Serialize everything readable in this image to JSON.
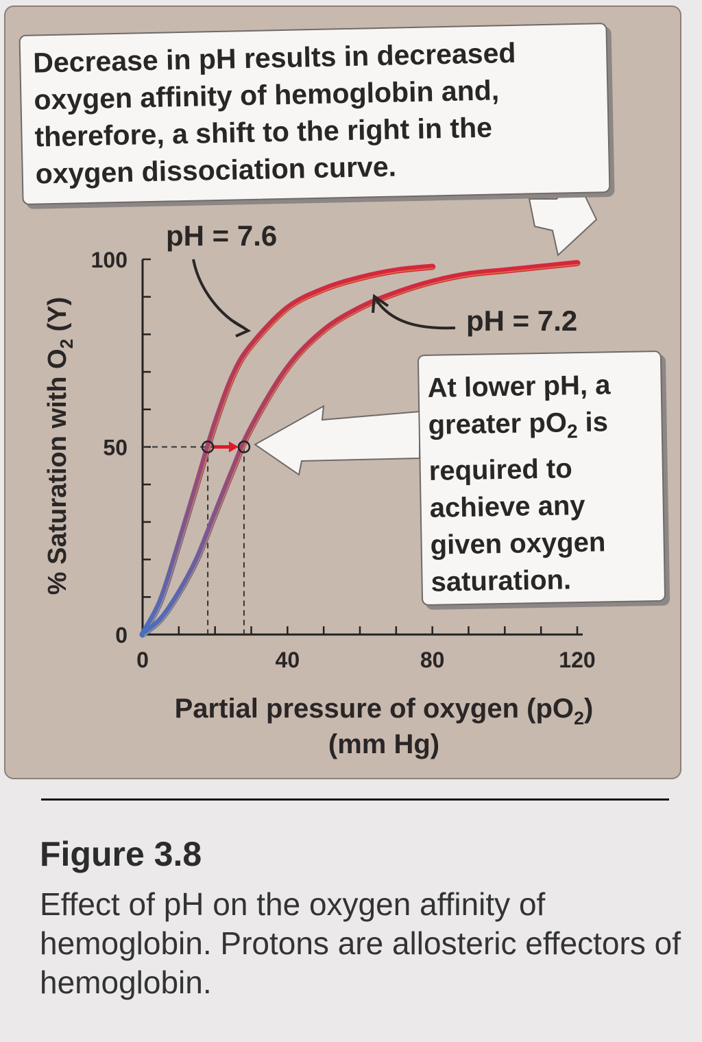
{
  "chart_data": {
    "type": "line",
    "xlabel": "Partial pressure of oxygen (pO₂) (mm Hg)",
    "xlabel_line1": "Partial pressure of oxygen (pO",
    "xlabel_sub": "2",
    "xlabel_close": ")",
    "xlabel_line2": "(mm Hg)",
    "ylabel": "% Saturation with O₂ (Y)",
    "ylabel_pre": "% Saturation with O",
    "ylabel_sub": "2",
    "ylabel_post": " (Y)",
    "xlim": [
      0,
      120
    ],
    "ylim": [
      0,
      100
    ],
    "xticks": [
      "0",
      "40",
      "80",
      "120"
    ],
    "yticks": [
      "0",
      "50",
      "100"
    ],
    "series": [
      {
        "name": "pH = 7.6",
        "x": [
          0,
          5,
          10,
          15,
          20,
          25,
          30,
          40,
          50,
          60,
          70,
          80
        ],
        "y": [
          0,
          9,
          24,
          40,
          56,
          69,
          77,
          87,
          92,
          95,
          97,
          98
        ]
      },
      {
        "name": "pH = 7.2",
        "x": [
          0,
          5,
          10,
          15,
          20,
          25,
          30,
          40,
          50,
          60,
          70,
          80,
          90,
          100,
          110,
          120
        ],
        "y": [
          0,
          4,
          11,
          20,
          32,
          44,
          55,
          71,
          81,
          87,
          91,
          94,
          96,
          97,
          98,
          99
        ]
      }
    ],
    "p50": [
      {
        "series": "pH = 7.6",
        "x": 18,
        "y": 50
      },
      {
        "series": "pH = 7.2",
        "x": 28,
        "y": 50
      }
    ],
    "colors": {
      "curve_high": "#d8263a",
      "curve_mid": "#9a4a72",
      "curve_low": "#4a6ec0",
      "panel": "#c7b9ae"
    }
  },
  "annotations": {
    "top_callout": "Decrease in pH results in decreased oxygen affinity of hemoglobin and, therefore, a shift to the right in the oxygen dissociation curve.",
    "right_callout_1": "At lower pH, a greater pO",
    "right_callout_sub": "2",
    "right_callout_2": " is required to achieve any given oxygen saturation."
  },
  "caption": {
    "label": "Figure 3.8",
    "text": "Effect of pH on the oxygen affinity of hemoglobin. Protons are allosteric effectors of hemoglobin."
  }
}
